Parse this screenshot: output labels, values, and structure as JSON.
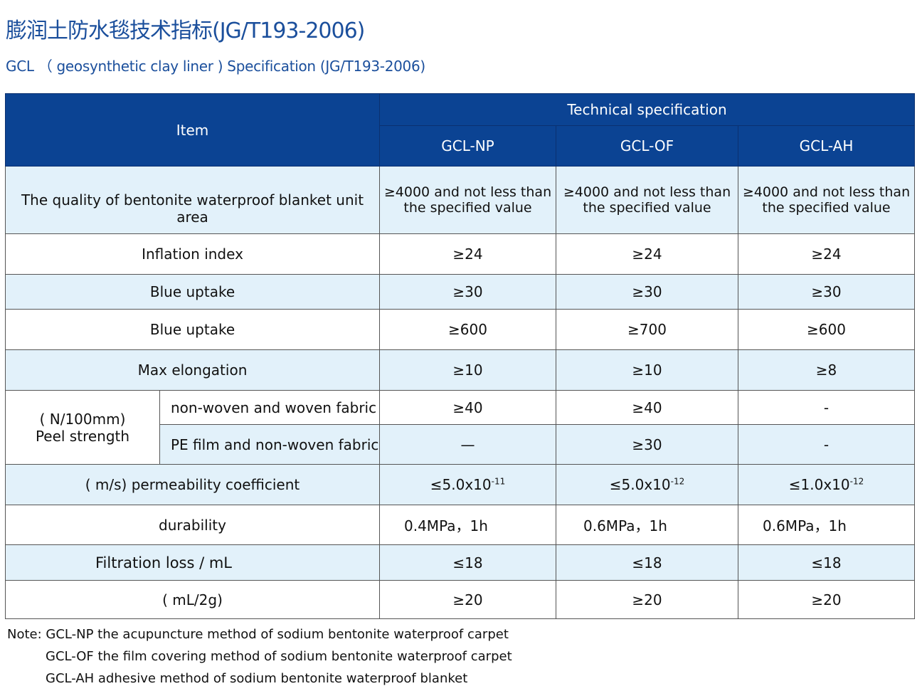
{
  "title": "膨润土防水毯技术指标(JG/T193-2006)",
  "subtitle": "GCL （ geosynthetic clay liner ) Specification (JG/T193-2006)",
  "table": {
    "item_header": "Item",
    "spec_header": "Technical specification",
    "columns": [
      "GCL-NP",
      "GCL-OF",
      "GCL-AH"
    ],
    "rows": [
      {
        "item": "The quality of bentonite waterproof blanket unit area",
        "values": [
          "≥4000 and not less than the specified value",
          "≥4000 and not less than the specified value",
          "≥4000 and not less than the specified value"
        ]
      },
      {
        "item": "Inflation index",
        "values": [
          "≥24",
          "≥24",
          "≥24"
        ]
      },
      {
        "item": "Blue uptake",
        "values": [
          "≥30",
          "≥30",
          "≥30"
        ]
      },
      {
        "item": "Blue uptake",
        "values": [
          "≥600",
          "≥700",
          "≥600"
        ]
      },
      {
        "item": "Max elongation",
        "values": [
          "≥10",
          "≥10",
          "≥8"
        ]
      }
    ],
    "peel": {
      "label1": "( N/100mm)",
      "label2": "Peel strength",
      "sub": [
        {
          "item": "non-woven and woven fabric",
          "values": [
            "≥40",
            "≥40",
            "-"
          ]
        },
        {
          "item": "PE film and non-woven fabric",
          "values": [
            "—",
            "≥30",
            "-"
          ]
        }
      ]
    },
    "perm": {
      "item": "( m/s) permeability coefficient",
      "values": [
        {
          "base": "≤5.0x10",
          "exp": "-11"
        },
        {
          "base": "≤5.0x10",
          "exp": "-12"
        },
        {
          "base": "≤1.0x10",
          "exp": "-12"
        }
      ]
    },
    "rows2": [
      {
        "item": "durability",
        "values": [
          "0.4MPa，1h",
          "0.6MPa，1h",
          "0.6MPa，1h"
        ]
      },
      {
        "item": "Filtration loss / mL",
        "values": [
          "≤18",
          "≤18",
          "≤18"
        ]
      },
      {
        "item": "( mL/2g)",
        "values": [
          "≥20",
          "≥20",
          "≥20"
        ]
      }
    ]
  },
  "notes": [
    "Note: GCL-NP the acupuncture method of sodium bentonite waterproof carpet",
    "GCL-OF the film covering  method of sodium bentonite waterproof carpet",
    "GCL-AH adhesive method of sodium bentonite waterproof blanket"
  ]
}
